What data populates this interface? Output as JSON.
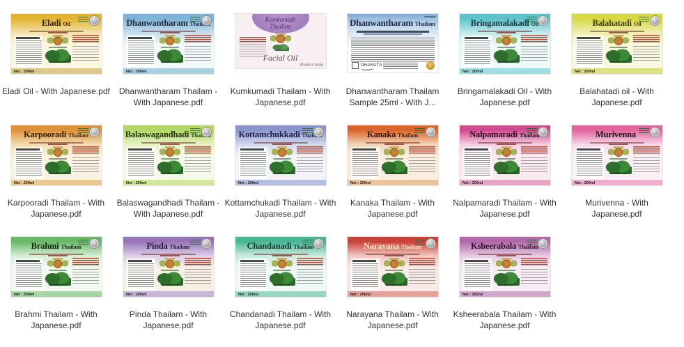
{
  "page": {
    "background": "#ffffff",
    "items_per_row": 6,
    "file_count": 17
  },
  "files": [
    {
      "caption": "Eladi Oil - With Japanese.pdf",
      "label": {
        "type": "standard",
        "title_main": "Eladi",
        "title_suffix": "Oil",
        "net_text": "Net : 200ml",
        "colors": {
          "header": "#e3b431",
          "fade": "#f2e3ae",
          "body": "#fdf6e0",
          "strip": "#dcc98a",
          "title": "#2e2410"
        }
      }
    },
    {
      "caption": "Dhanwantharam Thailam - With Japanese.pdf",
      "label": {
        "type": "standard",
        "title_main": "Dhanwantharam",
        "title_suffix": "Thailam",
        "net_text": "Net : 200ml",
        "colors": {
          "header": "#7fb2d6",
          "fade": "#c8dfee",
          "body": "#f3f8fb",
          "strip": "#a9cfe3",
          "title": "#1c2b3a"
        }
      }
    },
    {
      "caption": "Kumkumadi Thailam - With Japanese.pdf",
      "label": {
        "type": "kumkumadi",
        "title_line1": "Kumkumadi",
        "title_line2": "Thailam",
        "script_text": "Facial Oil",
        "made_in": "Made in India",
        "colors": {
          "background": "#f8eff2",
          "ellipse": "#a480bf",
          "title": "#4d2c62"
        }
      }
    },
    {
      "caption": "Dhanwantharam Thailam Sample 25ml - With J...",
      "label": {
        "type": "sample",
        "title_main": "Dhanwantharam",
        "title_suffix": "Thailam",
        "brand": "DHANUTA",
        "colors": {
          "header": "#7fa9d2",
          "title": "#1a2742"
        }
      }
    },
    {
      "caption": "Bringamalakadi Oil - With Japanese.pdf",
      "label": {
        "type": "standard",
        "title_main": "Bringamalakadi",
        "title_suffix": "Oil",
        "net_text": "Net : 200ml",
        "colors": {
          "header": "#5fc2cb",
          "fade": "#c5eaea",
          "body": "#eefafa",
          "strip": "#9edde2",
          "title": "#14393b"
        }
      }
    },
    {
      "caption": "Balahatadi  oil - With Japanese.pdf",
      "label": {
        "type": "standard",
        "title_main": "Balahatadi",
        "title_suffix": "Oil",
        "net_text": "Net : 200ml",
        "colors": {
          "header": "#d7d844",
          "fade": "#eeefb4",
          "body": "#f9f9df",
          "strip": "#dcdf84",
          "title": "#4a3a08"
        }
      }
    },
    {
      "caption": "Karpooradi Thailam - With Japanese.pdf",
      "label": {
        "type": "standard",
        "title_main": "Karpooradi",
        "title_suffix": "Thailam",
        "net_text": "Net : 200ml",
        "colors": {
          "header": "#dd9138",
          "fade": "#f2ddb4",
          "body": "#fbf3e1",
          "strip": "#eaca92",
          "title": "#3a2206"
        }
      }
    },
    {
      "caption": "Balaswagandhadi Thailam - With Japanese.pdf",
      "label": {
        "type": "standard",
        "title_main": "Balaswagandhadi",
        "title_suffix": "Thailam",
        "net_text": "Net : 200ml",
        "colors": {
          "header": "#b4d765",
          "fade": "#e6f2c6",
          "body": "#f6fae8",
          "strip": "#d2e79b",
          "title": "#253409"
        }
      }
    },
    {
      "caption": "Kottamchukadi Thailam - With Japanese.pdf",
      "label": {
        "type": "standard",
        "title_main": "Kottamchukkadi",
        "title_suffix": "Thailam",
        "net_text": "Net : 200ml",
        "colors": {
          "header": "#8a95cc",
          "fade": "#d3d9ee",
          "body": "#f2f4fa",
          "strip": "#b6bfe0",
          "title": "#1b2147"
        }
      }
    },
    {
      "caption": "Kanaka Thailam - With Japanese.pdf",
      "label": {
        "type": "standard",
        "title_main": "Kanaka",
        "title_suffix": "Thailam",
        "net_text": "Net : 200ml",
        "colors": {
          "header": "#d8662a",
          "fade": "#f2d5bc",
          "body": "#fbeee0",
          "strip": "#eac5a0",
          "title": "#33180a"
        }
      }
    },
    {
      "caption": "Nalpamaradi Thailam - With Japanese.pdf",
      "label": {
        "type": "standard",
        "title_main": "Nalpamaradi",
        "title_suffix": "Thailam",
        "net_text": "Net : 200ml",
        "colors": {
          "header": "#d04b90",
          "fade": "#f2cfe2",
          "body": "#fbeaf2",
          "strip": "#e7a6c8",
          "title": "#2d0d20"
        }
      }
    },
    {
      "caption": "Murivenna - With Japanese.pdf",
      "label": {
        "type": "standard",
        "title_main": "Murivenna",
        "title_suffix": "",
        "net_text": "Net : 200ml",
        "colors": {
          "header": "#e0669d",
          "fade": "#f6d8e8",
          "body": "#fcf0f6",
          "strip": "#eeb0ce",
          "title": "#1a1216"
        }
      }
    },
    {
      "caption": "Brahmi Thailam - With Japanese.pdf",
      "label": {
        "type": "standard",
        "title_main": "Brahmi",
        "title_suffix": "Thailam",
        "net_text": "Net : 200ml",
        "colors": {
          "header": "#6ab768",
          "fade": "#d7eed6",
          "body": "#f1f9f0",
          "strip": "#a6d6a4",
          "title": "#10270f"
        }
      }
    },
    {
      "caption": "Pinda Thailam - With Japanese.pdf",
      "label": {
        "type": "standard",
        "title_main": "Pinda",
        "title_suffix": "Thailam",
        "net_text": "Net : 200ml",
        "colors": {
          "header": "#9674b8",
          "fade": "#ddd1ea",
          "body": "#f6f0e3",
          "strip": "#c8b4d9",
          "title": "#2a1640"
        }
      }
    },
    {
      "caption": "Chandanadi Thailam - With Japanese.pdf",
      "label": {
        "type": "standard",
        "title_main": "Chandanadi",
        "title_suffix": "Thailam",
        "net_text": "Net : 200ml",
        "colors": {
          "header": "#49b795",
          "fade": "#cdebe0",
          "body": "#eef8f4",
          "strip": "#9ad7c3",
          "title": "#0d3427"
        }
      }
    },
    {
      "caption": "Narayana Thailam - With Japanese.pdf",
      "label": {
        "type": "standard",
        "title_main": "Narayana",
        "title_suffix": "Thailam",
        "net_text": "Net : 200ml",
        "colors": {
          "header": "#c94438",
          "fade": "#efc9c4",
          "body": "#faeae7",
          "strip": "#e4a29a",
          "title": "#f4e9c4"
        }
      }
    },
    {
      "caption": "Ksheerabala Thailam - With Japanese.pdf",
      "label": {
        "type": "standard",
        "title_main": "Ksheerabala",
        "title_suffix": "Thailam",
        "net_text": "Net : 200ml",
        "colors": {
          "header": "#b168a9",
          "fade": "#e6cce3",
          "body": "#f7eef5",
          "strip": "#d2a7cd",
          "title": "#2c1127"
        }
      }
    }
  ]
}
